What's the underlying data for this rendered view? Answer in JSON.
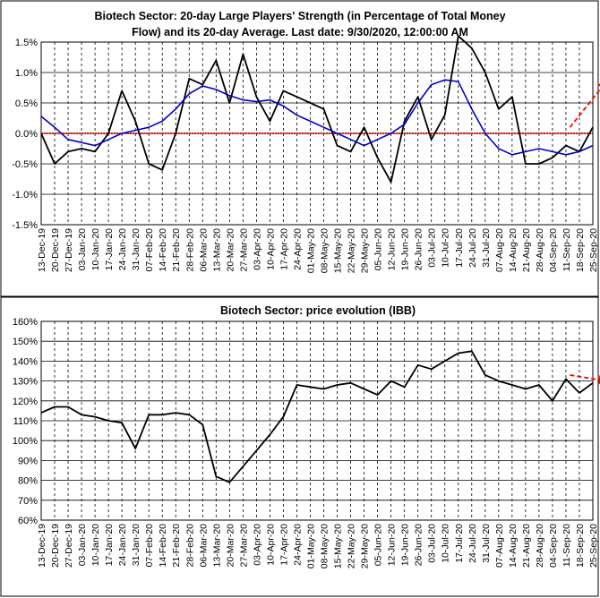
{
  "chart_data": [
    {
      "type": "line",
      "title": "Biotech Sector: 20-day Large Players' Strength (in Percentage of Total Money Flow) and its 20-day Average. Last date: 9/30/2020, 12:00:00 AM",
      "title_lines": [
        "Biotech Sector: 20-day Large Players' Strength (in Percentage of Total Money",
        "Flow) and its 20-day Average. Last date: 9/30/2020, 12:00:00 AM"
      ],
      "ylim": [
        -1.5,
        1.5
      ],
      "yticks": [
        "-1.5%",
        "-1.0%",
        "-0.5%",
        "0.0%",
        "0.5%",
        "1.0%",
        "1.5%"
      ],
      "ytick_values": [
        -1.5,
        -1.0,
        -0.5,
        0.0,
        0.5,
        1.0,
        1.5
      ],
      "x_dates": [
        "13-Dec-19",
        "20-Dec-19",
        "27-Dec-19",
        "03-Jan-20",
        "10-Jan-20",
        "17-Jan-20",
        "24-Jan-20",
        "31-Jan-20",
        "07-Feb-20",
        "14-Feb-20",
        "21-Feb-20",
        "28-Feb-20",
        "06-Mar-20",
        "13-Mar-20",
        "20-Mar-20",
        "27-Mar-20",
        "03-Apr-20",
        "10-Apr-20",
        "17-Apr-20",
        "24-Apr-20",
        "01-May-20",
        "08-May-20",
        "15-May-20",
        "22-May-20",
        "29-May-20",
        "05-Jun-20",
        "12-Jun-20",
        "19-Jun-20",
        "26-Jun-20",
        "03-Jul-20",
        "10-Jul-20",
        "17-Jul-20",
        "24-Jul-20",
        "31-Jul-20",
        "07-Aug-20",
        "14-Aug-20",
        "21-Aug-20",
        "28-Aug-20",
        "04-Sep-20",
        "11-Sep-20",
        "18-Sep-20",
        "25-Sep-20"
      ],
      "x_ticks": [
        "13-Dec-19",
        "20-Dec-19",
        "27-Dec-19",
        "03-Jan-20",
        "10-Jan-20",
        "17-Jan-20",
        "24-Jan-20",
        "31-Jan-20",
        "07-Feb-20",
        "14-Feb-20",
        "21-Feb-20",
        "28-Feb-20",
        "06-Mar-20",
        "13-Mar-20",
        "20-Mar-20",
        "27-Mar-20",
        "03-Apr-20",
        "10-Apr-20",
        "17-Apr-20",
        "24-Apr-20",
        "01-May-20",
        "08-May-20",
        "15-May-20",
        "22-May-20",
        "29-May-20",
        "05-Jun-20",
        "12-Jun-20",
        "19-Jun-20",
        "26-Jun-20",
        "03-Jul-20",
        "10-Jul-20",
        "17-Jul-20",
        "24-Jul-20",
        "31-Jul-20",
        "07-Aug-20",
        "14-Aug-20",
        "21-Aug-20",
        "28-Aug-20",
        "04-Sep-20",
        "11-Sep-20",
        "18-Sep-20",
        "25-Sep-20"
      ],
      "series": [
        {
          "color": "#000000",
          "values": [
            0.0,
            -0.5,
            -0.3,
            -0.25,
            -0.3,
            0.0,
            0.7,
            0.2,
            -0.5,
            -0.6,
            0.0,
            0.9,
            0.8,
            1.2,
            0.5,
            1.3,
            0.6,
            0.2,
            0.7,
            0.6,
            0.5,
            0.4,
            -0.2,
            -0.3,
            0.1,
            -0.4,
            -0.8,
            0.2,
            0.6,
            -0.1,
            0.3,
            1.6,
            1.4,
            1.0,
            0.4,
            0.6,
            -0.5,
            -0.5,
            -0.4,
            -0.2,
            -0.3,
            0.1
          ]
        },
        {
          "color": "#0000cc",
          "values": [
            0.28,
            0.1,
            -0.1,
            -0.15,
            -0.2,
            -0.1,
            0.0,
            0.05,
            0.1,
            0.2,
            0.4,
            0.65,
            0.78,
            0.72,
            0.62,
            0.55,
            0.52,
            0.55,
            0.45,
            0.3,
            0.2,
            0.1,
            0.0,
            -0.1,
            -0.2,
            -0.1,
            0.0,
            0.15,
            0.5,
            0.8,
            0.88,
            0.85,
            0.4,
            0.0,
            -0.25,
            -0.35,
            -0.3,
            -0.25,
            -0.3,
            -0.35,
            -0.3,
            -0.2
          ]
        }
      ],
      "reference_line": {
        "y": 0.0,
        "color": "#cc0000"
      },
      "annotation_arrow": {
        "from": [
          39.3,
          0.1
        ],
        "to": [
          42.0,
          0.85
        ],
        "color": "#ff0000"
      }
    },
    {
      "type": "line",
      "title": "Biotech Sector: price evolution (IBB)",
      "ylim": [
        60,
        160
      ],
      "yticks": [
        "60%",
        "70%",
        "80%",
        "90%",
        "100%",
        "110%",
        "120%",
        "130%",
        "140%",
        "150%",
        "160%"
      ],
      "ytick_values": [
        60,
        70,
        80,
        90,
        100,
        110,
        120,
        130,
        140,
        150,
        160
      ],
      "x_ticks": [
        "13-Dec-19",
        "20-Dec-19",
        "27-Dec-19",
        "03-Jan-20",
        "10-Jan-20",
        "17-Jan-20",
        "24-Jan-20",
        "31-Jan-20",
        "07-Feb-20",
        "14-Feb-20",
        "21-Feb-20",
        "28-Feb-20",
        "06-Mar-20",
        "13-Mar-20",
        "20-Mar-20",
        "27-Mar-20",
        "03-Apr-20",
        "10-Apr-20",
        "17-Apr-20",
        "24-Apr-20",
        "01-May-20",
        "08-May-20",
        "15-May-20",
        "22-May-20",
        "29-May-20",
        "05-Jun-20",
        "12-Jun-20",
        "19-Jun-20",
        "26-Jun-20",
        "03-Jul-20",
        "10-Jul-20",
        "17-Jul-20",
        "24-Jul-20",
        "31-Jul-20",
        "07-Aug-20",
        "14-Aug-20",
        "21-Aug-20",
        "28-Aug-20",
        "04-Sep-20",
        "11-Sep-20",
        "18-Sep-20",
        "25-Sep-20"
      ],
      "series": [
        {
          "color": "#000000",
          "values": [
            114,
            117,
            117,
            113,
            112,
            110,
            109,
            96,
            113,
            113,
            114,
            113,
            108,
            82,
            79,
            87,
            95,
            103,
            112,
            128,
            127,
            126,
            128,
            129,
            126,
            123,
            130,
            127,
            138,
            136,
            140,
            144,
            145,
            133,
            130,
            128,
            126,
            128,
            120,
            131,
            124,
            129
          ]
        }
      ],
      "annotation_arrow": {
        "from": [
          39.3,
          133
        ],
        "to": [
          42.0,
          130
        ],
        "color": "#ff0000"
      }
    }
  ]
}
